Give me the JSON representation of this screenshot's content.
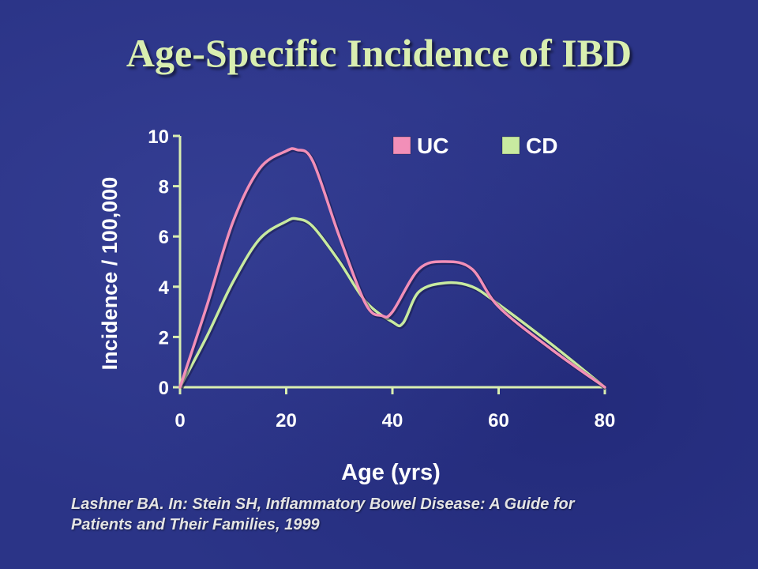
{
  "title": "Age-Specific Incidence of IBD",
  "citation": {
    "line1": "Lashner BA. In: Stein SH, Inflammatory Bowel Disease: A Guide for",
    "line2": "Patients and Their Families, 1999"
  },
  "colors": {
    "background": "#2b3487",
    "title": "#d9eeb0",
    "axis": "#d9eeb0",
    "uc": "#f28fb8",
    "cd": "#c8eaa0"
  },
  "chart_data": {
    "type": "line",
    "title": "Age-Specific Incidence of IBD",
    "xlabel": "Age (yrs)",
    "ylabel": "Incidence / 100,000",
    "xlim": [
      0,
      80
    ],
    "ylim": [
      0,
      10
    ],
    "xticks": [
      0,
      20,
      40,
      60,
      80
    ],
    "yticks": [
      0,
      2,
      4,
      6,
      8,
      10
    ],
    "grid": false,
    "legend_position": "top-right",
    "series": [
      {
        "name": "UC",
        "color": "#f28fb8",
        "x": [
          0,
          5,
          10,
          15,
          20,
          22,
          25,
          30,
          35,
          38,
          40,
          45,
          50,
          55,
          60,
          70,
          80
        ],
        "y": [
          0,
          3.2,
          6.6,
          8.7,
          9.4,
          9.45,
          9.0,
          6.0,
          3.3,
          2.85,
          3.0,
          4.7,
          5.0,
          4.7,
          3.2,
          1.5,
          0
        ]
      },
      {
        "name": "CD",
        "color": "#c8eaa0",
        "x": [
          0,
          5,
          10,
          15,
          20,
          22,
          25,
          30,
          35,
          40,
          42,
          45,
          50,
          55,
          60,
          70,
          80
        ],
        "y": [
          0,
          2.0,
          4.2,
          5.9,
          6.6,
          6.7,
          6.4,
          5.0,
          3.4,
          2.6,
          2.55,
          3.8,
          4.15,
          4.0,
          3.3,
          1.7,
          0
        ]
      }
    ]
  }
}
